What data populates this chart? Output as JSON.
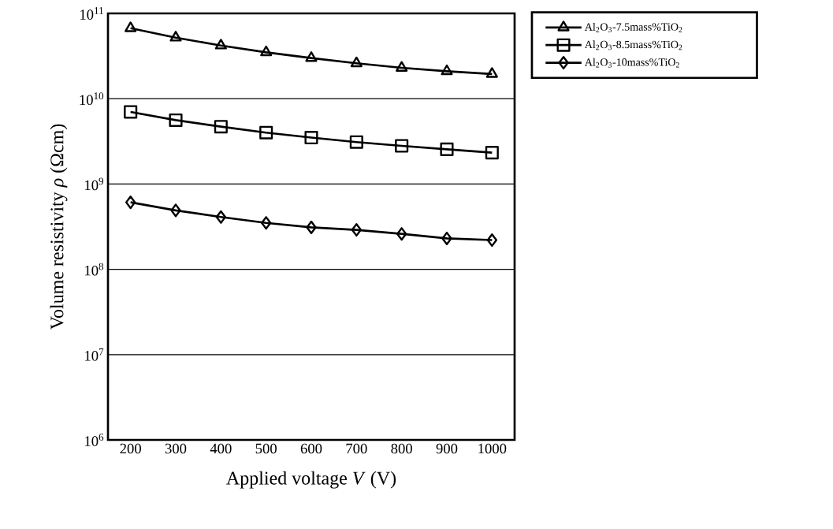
{
  "chart_data": {
    "type": "line",
    "xlabel": "Applied voltage *V* (V)",
    "ylabel": "Volume  resistivity *ρ* (Ωcm)",
    "x": [
      200,
      300,
      400,
      500,
      600,
      700,
      800,
      900,
      1000
    ],
    "series": [
      {
        "name": "Al$_{2}$O$_{3}$-7.5mass%TiO$_{2}$",
        "color": "#000000",
        "marker": "triangle",
        "values": [
          67000000000.0,
          52000000000.0,
          42000000000.0,
          35000000000.0,
          30000000000.0,
          26000000000.0,
          23000000000.0,
          21000000000.0,
          19500000000.0
        ]
      },
      {
        "name": "Al$_{2}$O$_{3}$-8.5mass%TiO$_{2}$",
        "color": "#000000",
        "marker": "square",
        "values": [
          7000000000.0,
          5600000000.0,
          4700000000.0,
          4000000000.0,
          3500000000.0,
          3100000000.0,
          2800000000.0,
          2550000000.0,
          2330000000.0
        ]
      },
      {
        "name": "Al$_{2}$O$_{3}$-10mass%TiO$_{2}$",
        "color": "#000000",
        "marker": "diamond",
        "values": [
          610000000.0,
          490000000.0,
          410000000.0,
          350000000.0,
          310000000.0,
          290000000.0,
          260000000.0,
          230000000.0,
          220000000.0
        ]
      }
    ],
    "xlim": [
      150,
      1050
    ],
    "xticks": [
      200,
      300,
      400,
      500,
      600,
      700,
      800,
      900,
      1000
    ],
    "ylim": [
      1000000.0,
      100000000000.0
    ],
    "yticks": [
      {
        "value": 1000000.0,
        "label": "10$^{6}$"
      },
      {
        "value": 10000000.0,
        "label": "10$^{7}$"
      },
      {
        "value": 100000000.0,
        "label": "10$^{8}$"
      },
      {
        "value": 1000000000.0,
        "label": "10$^{9}$"
      },
      {
        "value": 10000000000.0,
        "label": "10$^{10}$"
      },
      {
        "value": 100000000000.0,
        "label": "10$^{11}$"
      }
    ],
    "log": "y",
    "grid": "y",
    "legend": "top right",
    "line_style": "solid"
  }
}
